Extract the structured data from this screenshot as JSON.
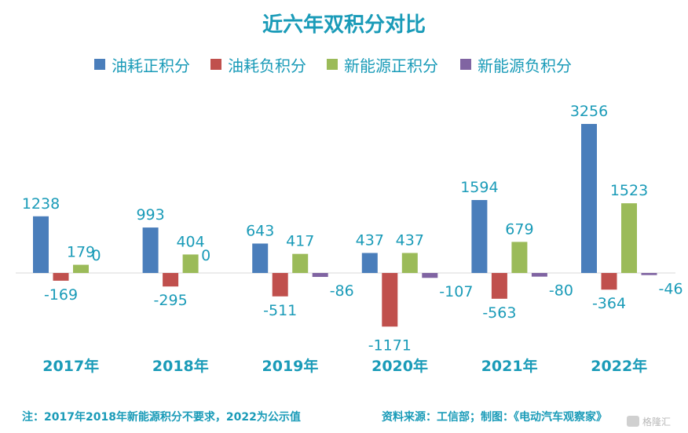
{
  "chart_data": {
    "type": "bar",
    "title": "近六年双积分对比",
    "categories": [
      "2017年",
      "2018年",
      "2019年",
      "2020年",
      "2021年",
      "2022年"
    ],
    "series": [
      {
        "name": "油耗正积分",
        "color": "#4a7ebb",
        "values": [
          1238,
          993,
          643,
          437,
          1594,
          3256
        ]
      },
      {
        "name": "油耗负积分",
        "color": "#c0504d",
        "values": [
          -169,
          -295,
          -511,
          -1171,
          -563,
          -364
        ]
      },
      {
        "name": "新能源正积分",
        "color": "#9bbb59",
        "values": [
          179,
          404,
          417,
          437,
          679,
          1523
        ]
      },
      {
        "name": "新能源负积分",
        "color": "#8064a2",
        "values": [
          0,
          0,
          -86,
          -107,
          -80,
          -46
        ]
      }
    ],
    "legend_position": "top",
    "grid": false,
    "ylim": [
      -1300,
      3500
    ]
  },
  "footer": {
    "note": "注：2017年2018年新能源积分不要求，2022为公示值",
    "source": "资料来源：工信部；制图：《电动汽车观察家》"
  },
  "watermark": {
    "text": "格隆汇"
  }
}
